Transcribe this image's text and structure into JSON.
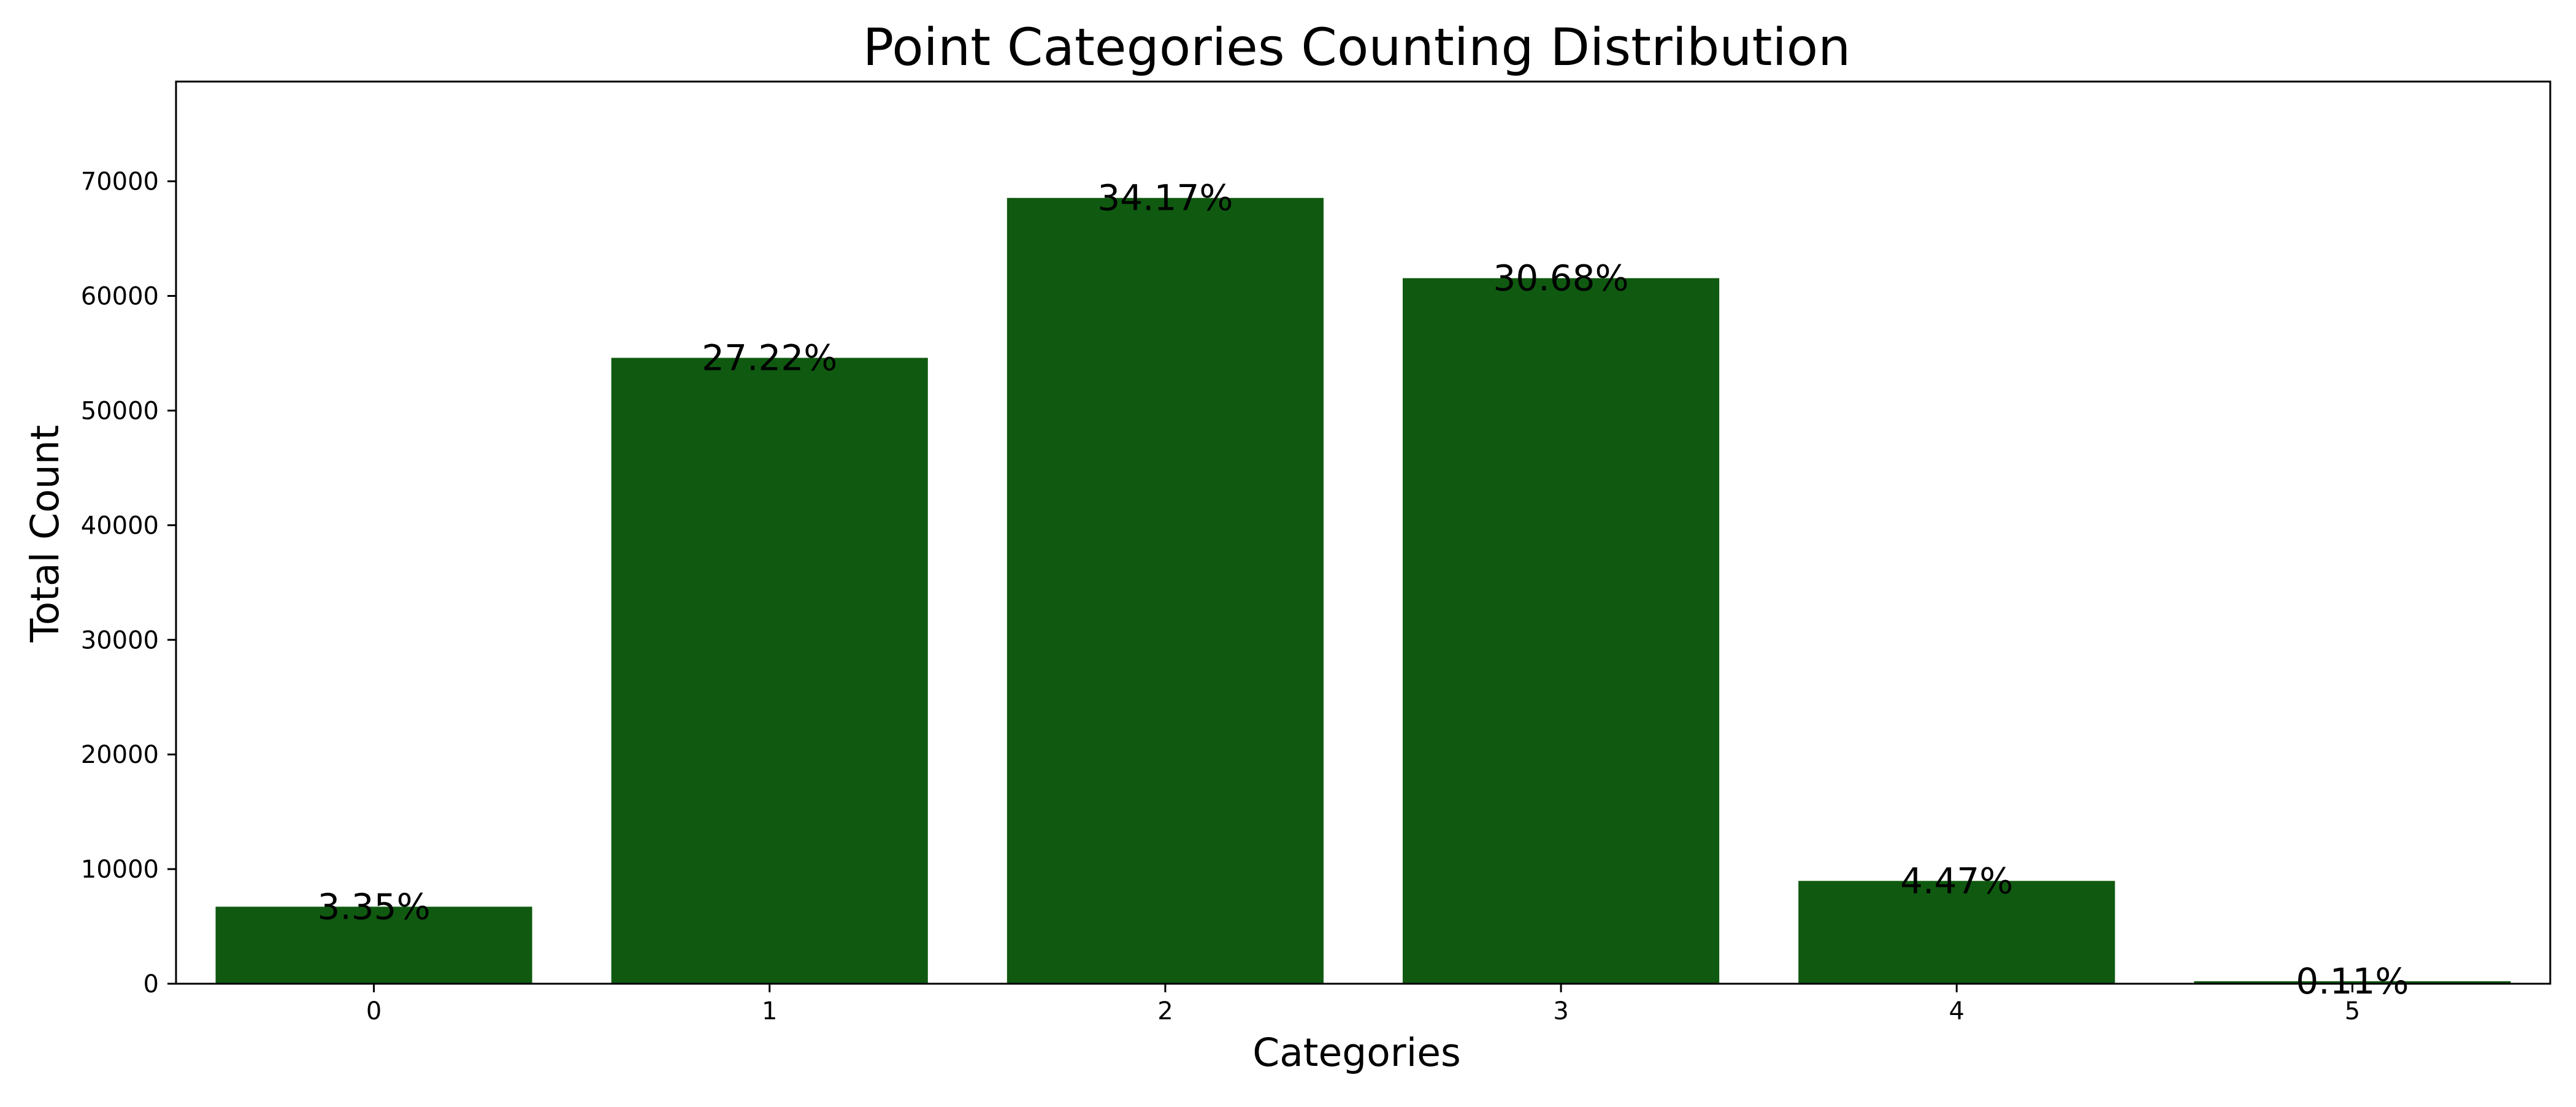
{
  "chart_data": {
    "type": "bar",
    "title": "Point Categories Counting Distribution",
    "xlabel": "Categories",
    "ylabel": "Total Count",
    "categories": [
      "0",
      "1",
      "2",
      "3",
      "4",
      "5"
    ],
    "values": [
      6720,
      54600,
      68550,
      61550,
      8970,
      220
    ],
    "data_labels": [
      "3.35%",
      "27.22%",
      "34.17%",
      "30.68%",
      "4.47%",
      "0.11%"
    ],
    "yticks": [
      0,
      10000,
      20000,
      30000,
      40000,
      50000,
      60000,
      70000
    ],
    "ylim": [
      0,
      78700
    ],
    "bar_color": "#0f5a10",
    "grid": false,
    "legend": "none"
  }
}
